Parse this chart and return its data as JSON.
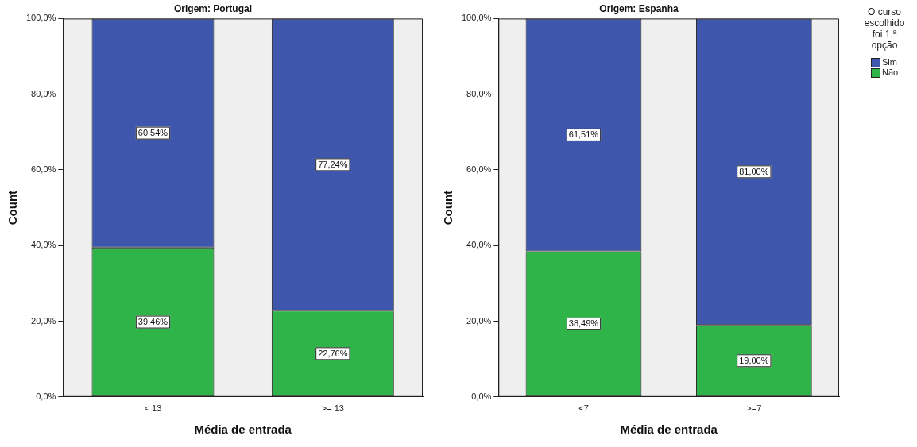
{
  "chart_data": [
    {
      "type": "bar",
      "title": "Origem: Portugal",
      "xlabel": "Média de entrada",
      "ylabel": "Count",
      "categories": [
        "< 13",
        ">= 13"
      ],
      "stacked": true,
      "ylim": [
        0,
        100
      ],
      "yticks": [
        {
          "value": 0,
          "label": "0,0%"
        },
        {
          "value": 20,
          "label": "20,0%"
        },
        {
          "value": 40,
          "label": "40,0%"
        },
        {
          "value": 60,
          "label": "60,0%"
        },
        {
          "value": 80,
          "label": "80,0%"
        },
        {
          "value": 100,
          "label": "100,0%"
        }
      ],
      "grid": false,
      "legend": false,
      "series": [
        {
          "color": "#2fb44a",
          "values": [
            39.46,
            22.76
          ],
          "value_labels": [
            "39,46%",
            "22,76%"
          ]
        },
        {
          "color": "#3e56ab",
          "values": [
            60.54,
            77.24
          ],
          "value_labels": [
            "60,54%",
            "77,24%"
          ]
        }
      ]
    },
    {
      "type": "bar",
      "title": "Origem: Espanha",
      "xlabel": "Média de entrada",
      "ylabel": "Count",
      "categories": [
        "<7",
        ">=7"
      ],
      "stacked": true,
      "ylim": [
        0,
        100
      ],
      "yticks": [
        {
          "value": 0,
          "label": "0,0%"
        },
        {
          "value": 20,
          "label": "20,0%"
        },
        {
          "value": 40,
          "label": "40,0%"
        },
        {
          "value": 60,
          "label": "60,0%"
        },
        {
          "value": 80,
          "label": "80,0%"
        },
        {
          "value": 100,
          "label": "100,0%"
        }
      ],
      "grid": false,
      "legend": "right",
      "legend_title": "O curso escolhido foi 1.ª opção",
      "series": [
        {
          "name": "Não",
          "color": "#2fb44a",
          "values": [
            38.49,
            19.0
          ],
          "value_labels": [
            "38,49%",
            "19,00%"
          ]
        },
        {
          "name": "Sim",
          "color": "#3e56ab",
          "values": [
            61.51,
            81.0
          ],
          "value_labels": [
            "61,51%",
            "81,00%"
          ]
        }
      ]
    }
  ]
}
